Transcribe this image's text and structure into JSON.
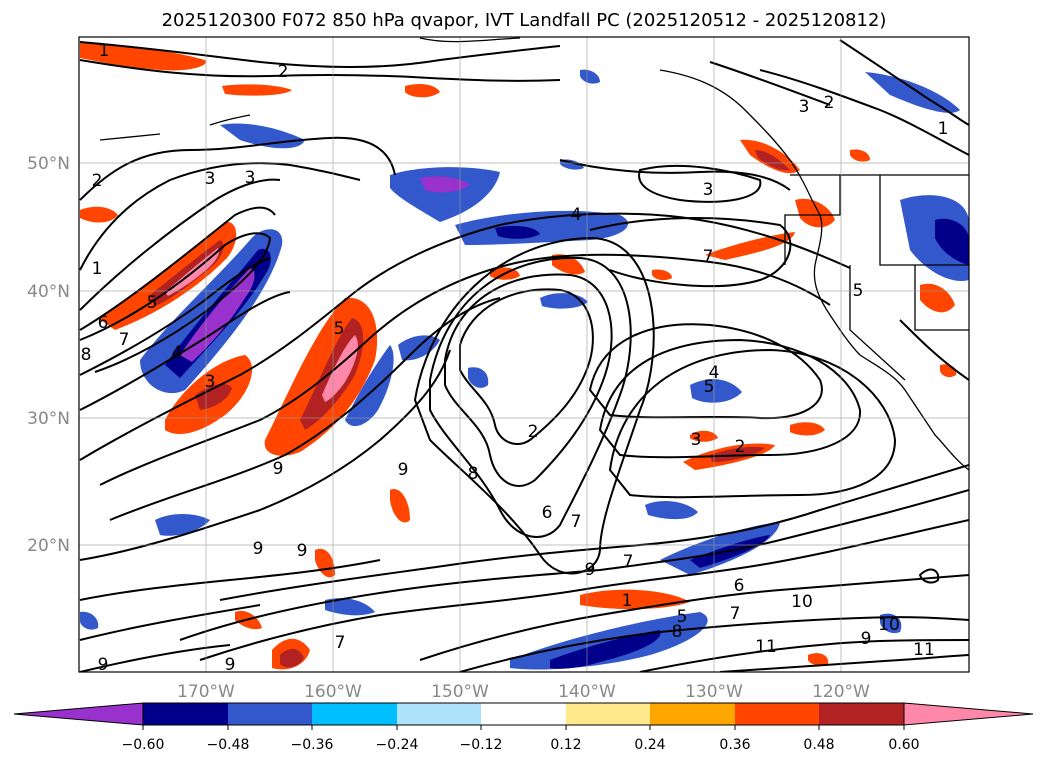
{
  "title": "2025120300 F072 850 hPa qvapor, IVT Landfall PC (2025120512 - 2025120812)",
  "map": {
    "lon_labels": [
      "170°W",
      "160°W",
      "150°W",
      "140°W",
      "130°W",
      "120°W"
    ],
    "lat_labels": [
      "50°N",
      "40°N",
      "30°N",
      "20°N"
    ],
    "contour_labels": [
      {
        "text": "1"
      },
      {
        "text": "2"
      },
      {
        "text": "3"
      },
      {
        "text": "3"
      },
      {
        "text": "2"
      },
      {
        "text": "1"
      },
      {
        "text": "2"
      },
      {
        "text": "3"
      },
      {
        "text": "3"
      },
      {
        "text": "4"
      },
      {
        "text": "7"
      },
      {
        "text": "1"
      },
      {
        "text": "5"
      },
      {
        "text": "6"
      },
      {
        "text": "7"
      },
      {
        "text": "8"
      },
      {
        "text": "4"
      },
      {
        "text": "3"
      },
      {
        "text": "5"
      },
      {
        "text": "5"
      },
      {
        "text": "4"
      },
      {
        "text": "5"
      },
      {
        "text": "2"
      },
      {
        "text": "3"
      },
      {
        "text": "2"
      },
      {
        "text": "9"
      },
      {
        "text": "8"
      },
      {
        "text": "9"
      },
      {
        "text": "6"
      },
      {
        "text": "7"
      },
      {
        "text": "9"
      },
      {
        "text": "7"
      },
      {
        "text": "6"
      },
      {
        "text": "1"
      },
      {
        "text": "10"
      },
      {
        "text": "7"
      },
      {
        "text": "9"
      },
      {
        "text": "9"
      },
      {
        "text": "7"
      },
      {
        "text": "8"
      },
      {
        "text": "10"
      },
      {
        "text": "9"
      },
      {
        "text": "11"
      },
      {
        "text": "11"
      },
      {
        "text": "9"
      },
      {
        "text": "9"
      },
      {
        "text": "5"
      }
    ]
  },
  "colorbar": {
    "tick_labels": [
      "−0.60",
      "−0.48",
      "−0.36",
      "−0.24",
      "−0.12",
      "0.12",
      "0.24",
      "0.36",
      "0.48",
      "0.60"
    ],
    "colors": [
      "#9932CC",
      "#00008B",
      "#3358CC",
      "#00BFFF",
      "#AEE2FA",
      "#FFFFFF",
      "#FFE98C",
      "#FFA500",
      "#FF4500",
      "#B22222",
      "#FF88AA"
    ]
  }
}
